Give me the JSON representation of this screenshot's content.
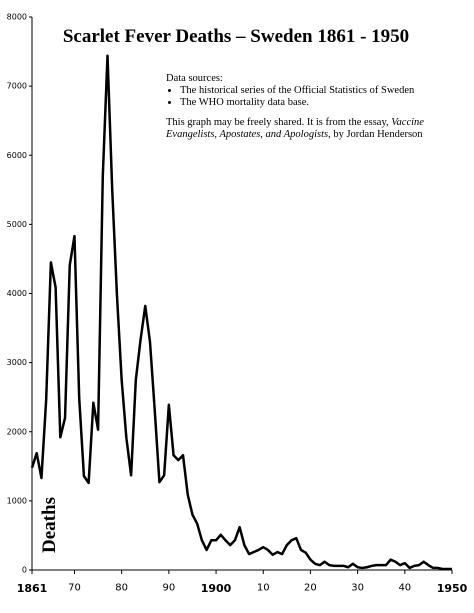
{
  "chart_data": {
    "type": "line",
    "title": "Scarlet Fever Deaths – Sweden 1861 - 1950",
    "y_label": "Deaths",
    "annotation": {
      "heading": "Data sources:",
      "bullets": [
        "The historical series of the Official Statistics of Sweden",
        "The WHO mortality data base."
      ],
      "note": [
        "This graph may be freely shared. It is from the essay, ",
        "Vaccine Evangelists, Apostates, and Apologists",
        ", by Jordan Henderson"
      ]
    },
    "color": "#000000",
    "x": [
      1861,
      1862,
      1863,
      1864,
      1865,
      1866,
      1867,
      1868,
      1869,
      1870,
      1871,
      1872,
      1873,
      1874,
      1875,
      1876,
      1877,
      1878,
      1879,
      1880,
      1881,
      1882,
      1883,
      1884,
      1885,
      1886,
      1887,
      1888,
      1889,
      1890,
      1891,
      1892,
      1893,
      1894,
      1895,
      1896,
      1897,
      1898,
      1899,
      1900,
      1901,
      1902,
      1903,
      1904,
      1905,
      1906,
      1907,
      1908,
      1909,
      1910,
      1911,
      1912,
      1913,
      1914,
      1915,
      1916,
      1917,
      1918,
      1919,
      1920,
      1921,
      1922,
      1923,
      1924,
      1925,
      1926,
      1927,
      1928,
      1929,
      1930,
      1931,
      1932,
      1933,
      1934,
      1935,
      1936,
      1937,
      1938,
      1939,
      1940,
      1941,
      1942,
      1943,
      1944,
      1945,
      1946,
      1947,
      1948,
      1949,
      1950
    ],
    "values": [
      1480,
      1690,
      1330,
      2460,
      4450,
      4090,
      1920,
      2200,
      4410,
      4830,
      2490,
      1360,
      1260,
      2420,
      2030,
      5700,
      7440,
      5500,
      3980,
      2750,
      1910,
      1370,
      2750,
      3330,
      3820,
      3300,
      2320,
      1270,
      1370,
      2390,
      1660,
      1590,
      1660,
      1090,
      800,
      670,
      430,
      290,
      430,
      430,
      510,
      430,
      360,
      430,
      620,
      360,
      230,
      260,
      290,
      330,
      290,
      220,
      260,
      230,
      360,
      430,
      460,
      290,
      250,
      150,
      90,
      70,
      120,
      70,
      60,
      60,
      60,
      40,
      90,
      40,
      30,
      40,
      60,
      70,
      70,
      70,
      150,
      120,
      70,
      100,
      30,
      60,
      70,
      120,
      70,
      30,
      30,
      15,
      15,
      15
    ],
    "xlim": [
      1861,
      1950
    ],
    "ylim": [
      0,
      8000
    ],
    "xticks": [
      1861,
      {
        "value": 1870,
        "label": "70"
      },
      {
        "value": 1880,
        "label": "80"
      },
      {
        "value": 1890,
        "label": "90"
      },
      1900,
      {
        "value": 1910,
        "label": "10"
      },
      {
        "value": 1920,
        "label": "20"
      },
      {
        "value": 1930,
        "label": "30"
      },
      {
        "value": 1940,
        "label": "40"
      },
      1950
    ],
    "yticks": [
      0,
      1000,
      2000,
      3000,
      4000,
      5000,
      6000,
      7000,
      8000
    ],
    "grid": false
  }
}
